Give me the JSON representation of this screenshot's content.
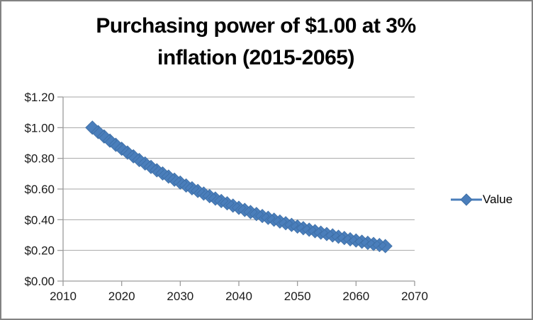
{
  "window": {
    "border_color": "#838383",
    "background_color": "#ffffff"
  },
  "title": {
    "text": "Purchasing power of $1.00 at 3% inflation (2015-2065)",
    "lines": [
      "Purchasing power of $1.00 at 3%",
      "inflation (2015-2065)"
    ],
    "color": "#000000"
  },
  "legend": {
    "label": "Value",
    "marker_icon": "diamond-marker-icon"
  },
  "colors": {
    "series": "#4a7ebb",
    "series_edge": "#3d6ea5",
    "axis": "#9c9c9c",
    "gridline": "#a6a6a6",
    "tick_label": "#1a1a1a"
  },
  "chart_data": {
    "type": "line",
    "title": "Purchasing power of $1.00 at 3% inflation (2015-2065)",
    "xlabel": "",
    "ylabel": "",
    "xlim": [
      2010,
      2070
    ],
    "ylim": [
      0,
      1.2
    ],
    "grid": "horizontal",
    "legend_position": "right",
    "x_tick_values": [
      2010,
      2020,
      2030,
      2040,
      2050,
      2060,
      2070
    ],
    "x_tick_labels": [
      "2010",
      "2020",
      "2030",
      "2040",
      "2050",
      "2060",
      "2070"
    ],
    "y_tick_values": [
      0,
      0.2,
      0.4,
      0.6,
      0.8,
      1.0,
      1.2
    ],
    "y_tick_labels": [
      "$0.00",
      "$0.20",
      "$0.40",
      "$0.60",
      "$0.80",
      "$1.00",
      "$1.20"
    ],
    "series": [
      {
        "name": "Value",
        "color": "#4a7ebb",
        "marker": "diamond",
        "x": [
          2015,
          2016,
          2017,
          2018,
          2019,
          2020,
          2021,
          2022,
          2023,
          2024,
          2025,
          2026,
          2027,
          2028,
          2029,
          2030,
          2031,
          2032,
          2033,
          2034,
          2035,
          2036,
          2037,
          2038,
          2039,
          2040,
          2041,
          2042,
          2043,
          2044,
          2045,
          2046,
          2047,
          2048,
          2049,
          2050,
          2051,
          2052,
          2053,
          2054,
          2055,
          2056,
          2057,
          2058,
          2059,
          2060,
          2061,
          2062,
          2063,
          2064,
          2065
        ],
        "values": [
          1.0,
          0.9709,
          0.9426,
          0.9151,
          0.8885,
          0.8626,
          0.8375,
          0.8131,
          0.7894,
          0.7664,
          0.7441,
          0.7224,
          0.7014,
          0.681,
          0.6611,
          0.6419,
          0.6232,
          0.605,
          0.5874,
          0.5703,
          0.5537,
          0.5375,
          0.5219,
          0.5067,
          0.4919,
          0.4776,
          0.4637,
          0.4502,
          0.4371,
          0.4243,
          0.412,
          0.4,
          0.3883,
          0.377,
          0.366,
          0.3554,
          0.345,
          0.335,
          0.3252,
          0.3158,
          0.3066,
          0.2976,
          0.289,
          0.2805,
          0.2724,
          0.2644,
          0.2567,
          0.2493,
          0.242,
          0.235,
          0.2281
        ]
      }
    ]
  }
}
